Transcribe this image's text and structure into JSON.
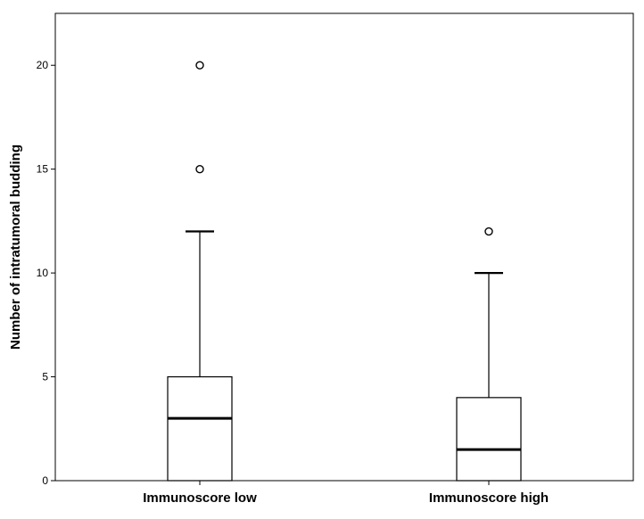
{
  "chart_data": {
    "type": "boxplot",
    "title": "",
    "xlabel": "",
    "ylabel": "Number of intratumoral budding",
    "ylim": [
      0,
      22.5
    ],
    "yticks": [
      "0",
      "5",
      "10",
      "15",
      "20"
    ],
    "grid": false,
    "categories": [
      "Immunoscore low",
      "Immunoscore high"
    ],
    "boxes": [
      {
        "category": "Immunoscore low",
        "whisker_low": 0,
        "q1": 0,
        "median": 3,
        "q3": 5,
        "whisker_high": 12,
        "outliers": [
          15,
          20
        ]
      },
      {
        "category": "Immunoscore high",
        "whisker_low": 0,
        "q1": 0,
        "median": 1.5,
        "q3": 4,
        "whisker_high": 10,
        "outliers": [
          12
        ]
      }
    ]
  }
}
